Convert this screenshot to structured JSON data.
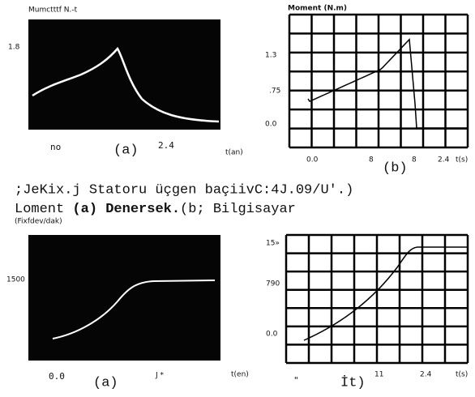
{
  "figure_top": {
    "panel_a": {
      "y_label": "Mumctttf N.-t",
      "y_tick": "1.8",
      "x_ticks": [
        "no",
        "2.4"
      ],
      "panel_label": "(a)",
      "x_label": "t(an)"
    },
    "panel_b": {
      "y_label": "Moment (N.m)",
      "y_ticks": [
        "1.3",
        ".75",
        "0.0"
      ],
      "x_ticks": [
        "0.0",
        "8",
        "8",
        "2.4"
      ],
      "panel_label": "(b)",
      "x_label": "t(s)"
    }
  },
  "caption": {
    "line1": ";JeKix.j Statoru üçgen baçiivC:4J.09/U'.)",
    "line2_start": "Loment",
    "line2_bold": "(a) Denersek.",
    "line2_end": "(b; Bilgisayar",
    "unit_note": "(Fixfdev/dak)"
  },
  "figure_bottom": {
    "panel_a": {
      "y_tick": "1500",
      "x_ticks": [
        "0.0",
        "J *"
      ],
      "panel_label": "(a)",
      "x_label": "t(en)"
    },
    "panel_b": {
      "y_ticks": [
        "15»",
        "790",
        "0.0"
      ],
      "x_ticks": [
        "\"",
        "11",
        "2.4"
      ],
      "panel_label": "İt)",
      "x_label": "t(s)"
    }
  }
}
